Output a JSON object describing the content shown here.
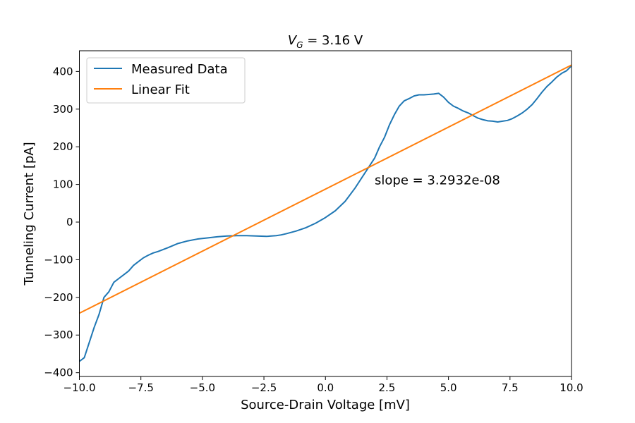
{
  "chart_data": {
    "type": "line",
    "title": {
      "main": "V",
      "sub": "G",
      "rest": " = 3.16 V"
    },
    "xlabel": "Source-Drain Voltage [mV]",
    "ylabel": "Tunneling Current [pA]",
    "xlim": [
      -10.0,
      10.0
    ],
    "ylim": [
      -410,
      455
    ],
    "xticks": [
      -10.0,
      -7.5,
      -5.0,
      -2.5,
      0.0,
      2.5,
      5.0,
      7.5,
      10.0
    ],
    "xtick_labels": [
      "−10.0",
      "−7.5",
      "−5.0",
      "−2.5",
      "0.0",
      "2.5",
      "5.0",
      "7.5",
      "10.0"
    ],
    "yticks": [
      -400,
      -300,
      -200,
      -100,
      0,
      100,
      200,
      300,
      400
    ],
    "ytick_labels": [
      "−400",
      "−300",
      "−200",
      "−100",
      "0",
      "100",
      "200",
      "300",
      "400"
    ],
    "grid": false,
    "legend_position": "top-left",
    "annotation": {
      "text": "slope = 3.2932e-08",
      "x": 2.0,
      "y": 100
    },
    "series": [
      {
        "name": "Measured Data",
        "color": "#1f77b4",
        "x": [
          -10.0,
          -9.8,
          -9.6,
          -9.4,
          -9.2,
          -9.0,
          -8.8,
          -8.6,
          -8.4,
          -8.2,
          -8.0,
          -7.8,
          -7.6,
          -7.4,
          -7.2,
          -7.0,
          -6.8,
          -6.4,
          -6.0,
          -5.6,
          -5.2,
          -4.8,
          -4.4,
          -4.0,
          -3.6,
          -3.2,
          -2.8,
          -2.4,
          -2.0,
          -1.8,
          -1.6,
          -1.2,
          -0.8,
          -0.4,
          0.0,
          0.4,
          0.8,
          1.2,
          1.6,
          2.0,
          2.2,
          2.4,
          2.6,
          2.8,
          3.0,
          3.2,
          3.4,
          3.6,
          3.8,
          4.0,
          4.2,
          4.4,
          4.6,
          4.8,
          5.0,
          5.2,
          5.4,
          5.6,
          5.8,
          6.0,
          6.2,
          6.4,
          6.6,
          6.8,
          7.0,
          7.2,
          7.4,
          7.6,
          7.8,
          8.0,
          8.2,
          8.4,
          8.6,
          8.8,
          9.0,
          9.2,
          9.4,
          9.6,
          9.8,
          10.0
        ],
        "y": [
          -370,
          -360,
          -320,
          -280,
          -245,
          -200,
          -185,
          -160,
          -150,
          -140,
          -130,
          -115,
          -105,
          -95,
          -88,
          -82,
          -78,
          -68,
          -57,
          -50,
          -45,
          -42,
          -39,
          -37,
          -36,
          -36,
          -37,
          -38,
          -36,
          -34,
          -31,
          -24,
          -15,
          -3,
          12,
          30,
          55,
          90,
          130,
          170,
          200,
          225,
          258,
          285,
          308,
          322,
          328,
          335,
          338,
          338,
          339,
          340,
          342,
          332,
          318,
          308,
          302,
          295,
          290,
          283,
          276,
          272,
          269,
          268,
          266,
          268,
          270,
          275,
          282,
          290,
          300,
          312,
          328,
          345,
          360,
          372,
          385,
          395,
          402,
          415
        ]
      },
      {
        "name": "Linear Fit",
        "color": "#ff7f0e",
        "x": [
          -10.0,
          10.0
        ],
        "y": [
          -242,
          417
        ]
      }
    ]
  }
}
